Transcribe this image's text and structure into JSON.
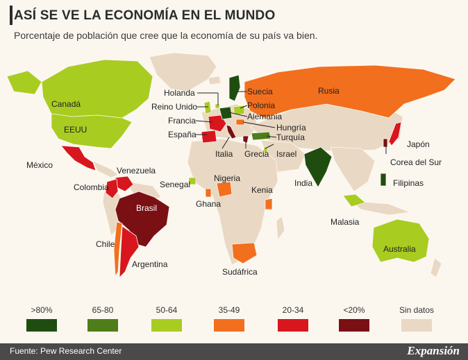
{
  "title": "ASÍ SE VE LA ECONOMÍA EN EL MUNDO",
  "subtitle": "Porcentaje de población que cree que la economía de su país va bien.",
  "categories": {
    "gt80": {
      "label": ">80%",
      "color": "#1f4d10"
    },
    "c65_80": {
      "label": "65-80",
      "color": "#4f7d1a"
    },
    "c50_64": {
      "label": "50-64",
      "color": "#a9cc20"
    },
    "c35_49": {
      "label": "35-49",
      "color": "#f26f1e"
    },
    "c20_34": {
      "label": "20-34",
      "color": "#d8161e"
    },
    "lt20": {
      "label": "<20%",
      "color": "#7a1014"
    },
    "none": {
      "label": "Sin datos",
      "color": "#e9d8c3"
    }
  },
  "countries": {
    "canada": {
      "label": "Canadá",
      "category": "c50_64"
    },
    "eeuu": {
      "label": "EEUU",
      "category": "c50_64"
    },
    "mexico": {
      "label": "México",
      "category": "c20_34"
    },
    "venezuela": {
      "label": "Venezuela",
      "category": "c20_34"
    },
    "colombia": {
      "label": "Colombia",
      "category": "c20_34"
    },
    "brasil": {
      "label": "Brasil",
      "category": "lt20"
    },
    "chile": {
      "label": "Chile",
      "category": "c35_49"
    },
    "argentina": {
      "label": "Argentina",
      "category": "c20_34"
    },
    "holanda": {
      "label": "Holanda",
      "category": "c50_64"
    },
    "reino_unido": {
      "label": "Reino Unido",
      "category": "c50_64"
    },
    "francia": {
      "label": "Francia",
      "category": "c20_34"
    },
    "espana": {
      "label": "España",
      "category": "c20_34"
    },
    "italia": {
      "label": "Italia",
      "category": "lt20"
    },
    "suecia": {
      "label": "Suecia",
      "category": "gt80"
    },
    "polonia": {
      "label": "Polonia",
      "category": "c50_64"
    },
    "alemania": {
      "label": "Alemania",
      "category": "gt80"
    },
    "hungria": {
      "label": "Hungría",
      "category": "c35_49"
    },
    "turquia": {
      "label": "Turquía",
      "category": "c65_80"
    },
    "grecia": {
      "label": "Grecia",
      "category": "lt20"
    },
    "israel": {
      "label": "Israel",
      "category": "c50_64"
    },
    "rusia": {
      "label": "Rusia",
      "category": "c35_49"
    },
    "india": {
      "label": "India",
      "category": "gt80"
    },
    "japon": {
      "label": "Japón",
      "category": "c20_34"
    },
    "corea_del_sur": {
      "label": "Corea del Sur",
      "category": "lt20"
    },
    "filipinas": {
      "label": "Filipinas",
      "category": "gt80"
    },
    "malasia": {
      "label": "Malasia",
      "category": "c50_64"
    },
    "australia": {
      "label": "Australia",
      "category": "c50_64"
    },
    "senegal": {
      "label": "Senegal",
      "category": "c50_64"
    },
    "nigeria": {
      "label": "Nigeria",
      "category": "c35_49"
    },
    "ghana": {
      "label": "Ghana",
      "category": "c35_49"
    },
    "kenia": {
      "label": "Kenia",
      "category": "c35_49"
    },
    "sudafrica": {
      "label": "Sudáfrica",
      "category": "c35_49"
    }
  },
  "footer": {
    "source": "Fuente: Pew Research Center",
    "brand": "Expansión"
  }
}
